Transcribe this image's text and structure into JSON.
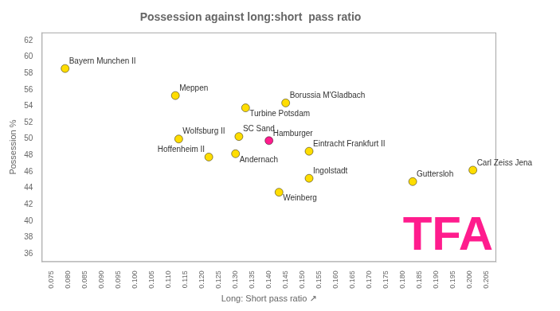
{
  "chart_data": {
    "type": "scatter",
    "title": "Possession against long:short  pass ratio",
    "xlabel": "Long: Short pass ratio ↗",
    "ylabel": "Possession %",
    "x": [
      0.079,
      0.112,
      0.133,
      0.145,
      0.113,
      0.131,
      0.14,
      0.13,
      0.122,
      0.152,
      0.152,
      0.143,
      0.183,
      0.201
    ],
    "values": [
      58.6,
      55.3,
      53.8,
      54.4,
      50.0,
      50.3,
      49.8,
      48.2,
      47.8,
      48.5,
      45.2,
      43.5,
      44.8,
      46.2
    ],
    "labels": [
      "Bayern Munchen II",
      "Meppen",
      "Turbine Potsdam",
      "Borussia M'Gladbach",
      "Wolfsburg II",
      "SC Sand",
      "Hamburger",
      "Andernach",
      "Hoffenheim II",
      "Eintracht Frankfurt II",
      "Ingolstadt",
      "Weinberg",
      "Guttersloh",
      "Carl Zeiss Jena"
    ],
    "colors": [
      "#ffdd00",
      "#ffdd00",
      "#ffdd00",
      "#ffdd00",
      "#ffdd00",
      "#ffdd00",
      "#ff1c8d",
      "#ffdd00",
      "#ffdd00",
      "#ffdd00",
      "#ffdd00",
      "#ffdd00",
      "#ffdd00",
      "#ffdd00"
    ],
    "xlim": [
      0.072,
      0.208
    ],
    "ylim": [
      35.0,
      63.0
    ],
    "xticks": [
      0.075,
      {
        "value": 0.08,
        "label": "0.080"
      },
      0.085,
      {
        "value": 0.09,
        "label": "0.090"
      },
      0.095,
      {
        "value": 0.1,
        "label": "0.100"
      },
      0.105,
      {
        "value": 0.11,
        "label": "0.110"
      },
      0.115,
      {
        "value": 0.12,
        "label": "0.120"
      },
      0.125,
      {
        "value": 0.13,
        "label": "0.130"
      },
      0.135,
      {
        "value": 0.14,
        "label": "0.140"
      },
      0.145,
      {
        "value": 0.15,
        "label": "0.150"
      },
      0.155,
      {
        "value": 0.16,
        "label": "0.160"
      },
      0.165,
      {
        "value": 0.17,
        "label": "0.170"
      },
      0.175,
      {
        "value": 0.18,
        "label": "0.180"
      },
      0.185,
      {
        "value": 0.19,
        "label": "0.190"
      },
      0.195,
      {
        "value": 0.2,
        "label": "0.200"
      },
      0.205
    ],
    "yticks": [
      36,
      38,
      40,
      42,
      44,
      46,
      48,
      50,
      52,
      54,
      56,
      58,
      60,
      62
    ],
    "annotations": [
      {
        "text": "TFA",
        "color": "#ff1c8d"
      }
    ],
    "grid": false
  }
}
